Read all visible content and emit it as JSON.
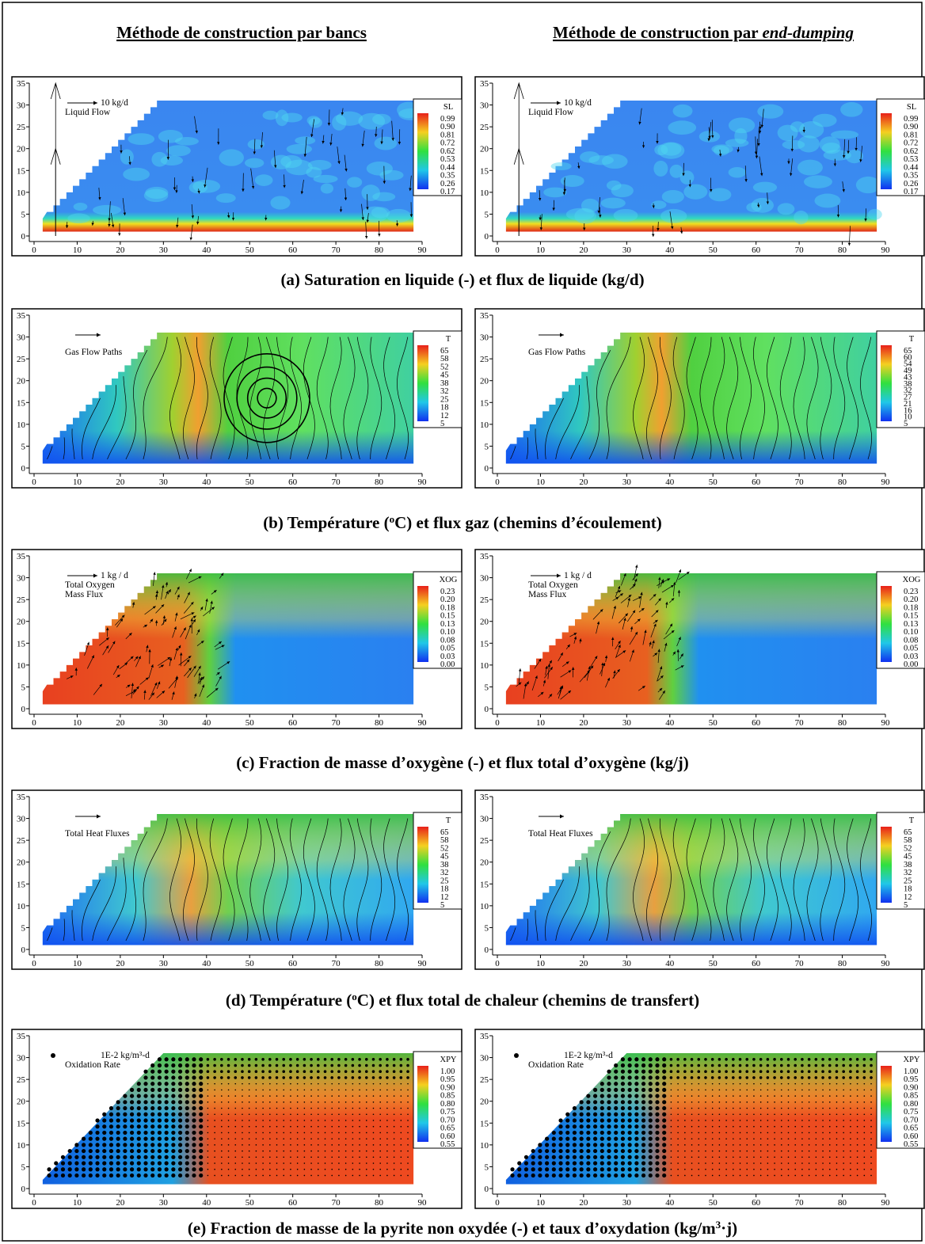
{
  "headers": [
    [
      {
        "text": "Méthode de construction par bancs"
      }
    ],
    [
      {
        "text": "Méthode de construction par "
      },
      {
        "emphasis": "end-dumping"
      }
    ]
  ],
  "axes": {
    "xticks": [
      0,
      10,
      20,
      30,
      40,
      50,
      60,
      70,
      80,
      90
    ],
    "yticks": [
      0,
      5,
      10,
      15,
      20,
      25,
      30,
      35
    ]
  },
  "rows": [
    {
      "caption": [
        {
          "text": "(a) Saturation en liquide (-) et flux de liquide (kg/d)"
        }
      ],
      "panels": [
        {
          "legend": "SL",
          "levels": [
            "0.99",
            "0.90",
            "0.81",
            "0.72",
            "0.62",
            "0.53",
            "0.44",
            "0.35",
            "0.26",
            "0.17"
          ],
          "notes": [
            "10 kg/d",
            "Liquid Flow"
          ]
        },
        {
          "legend": "SL",
          "levels": [
            "0.99",
            "0.90",
            "0.81",
            "0.72",
            "0.62",
            "0.53",
            "0.44",
            "0.35",
            "0.26",
            "0.17"
          ],
          "notes": [
            "10 kg/d",
            "Liquid Flow"
          ]
        }
      ]
    },
    {
      "caption": [
        {
          "text": "(b) Température ("
        },
        {
          "sup": "o"
        },
        {
          "text": "C) et flux gaz (chemins d’écoulement)"
        }
      ],
      "panels": [
        {
          "legend": "T",
          "levels": [
            "65",
            "58",
            "52",
            "45",
            "38",
            "32",
            "25",
            "18",
            "12",
            "5"
          ],
          "notes": [
            "Gas Flow Paths"
          ]
        },
        {
          "legend": "T",
          "levels": [
            "65",
            "60",
            "54",
            "49",
            "43",
            "38",
            "32",
            "27",
            "21",
            "16",
            "10",
            "5"
          ],
          "notes": [
            "Gas Flow Paths"
          ]
        }
      ]
    },
    {
      "caption": [
        {
          "text": "(c) Fraction de masse d’oxygène (-) et flux total d’oxygène (kg/j)"
        }
      ],
      "panels": [
        {
          "legend": "XOG",
          "levels": [
            "0.23",
            "0.20",
            "0.18",
            "0.15",
            "0.13",
            "0.10",
            "0.08",
            "0.05",
            "0.03",
            "0.00"
          ],
          "notes": [
            "1 kg / d",
            "Total Oxygen",
            "Mass Flux"
          ]
        },
        {
          "legend": "XOG",
          "levels": [
            "0.23",
            "0.20",
            "0.18",
            "0.15",
            "0.13",
            "0.10",
            "0.08",
            "0.05",
            "0.03",
            "0.00"
          ],
          "notes": [
            "1 kg / d",
            "Total Oxygen",
            "Mass Flux"
          ]
        }
      ]
    },
    {
      "caption": [
        {
          "text": "(d) Température ("
        },
        {
          "sup": "o"
        },
        {
          "text": "C) et flux total de chaleur (chemins de transfert)"
        }
      ],
      "panels": [
        {
          "legend": "T",
          "levels": [
            "65",
            "58",
            "52",
            "45",
            "38",
            "32",
            "25",
            "18",
            "12",
            "5"
          ],
          "notes": [
            "Total Heat Fluxes"
          ]
        },
        {
          "legend": "T",
          "levels": [
            "65",
            "58",
            "52",
            "45",
            "38",
            "32",
            "25",
            "18",
            "12",
            "5"
          ],
          "notes": [
            "Total Heat Fluxes"
          ]
        }
      ]
    },
    {
      "caption": [
        {
          "text": "(e) Fraction de masse de la pyrite non oxydée (-) et taux d’oxydation (kg/m"
        },
        {
          "sup": "3"
        },
        {
          "text": "·j)"
        }
      ],
      "panels": [
        {
          "legend": "XPY",
          "levels": [
            "1.00",
            "0.95",
            "0.90",
            "0.85",
            "0.80",
            "0.75",
            "0.70",
            "0.65",
            "0.60",
            "0.55"
          ],
          "notes": [
            "1E-2 kg/m³-d",
            "Oxidation Rate"
          ]
        },
        {
          "legend": "XPY",
          "levels": [
            "1.00",
            "0.95",
            "0.90",
            "0.85",
            "0.80",
            "0.75",
            "0.70",
            "0.65",
            "0.60",
            "0.55"
          ],
          "notes": [
            "1E-2 kg/m³-d",
            "Oxidation Rate"
          ]
        }
      ]
    }
  ]
}
